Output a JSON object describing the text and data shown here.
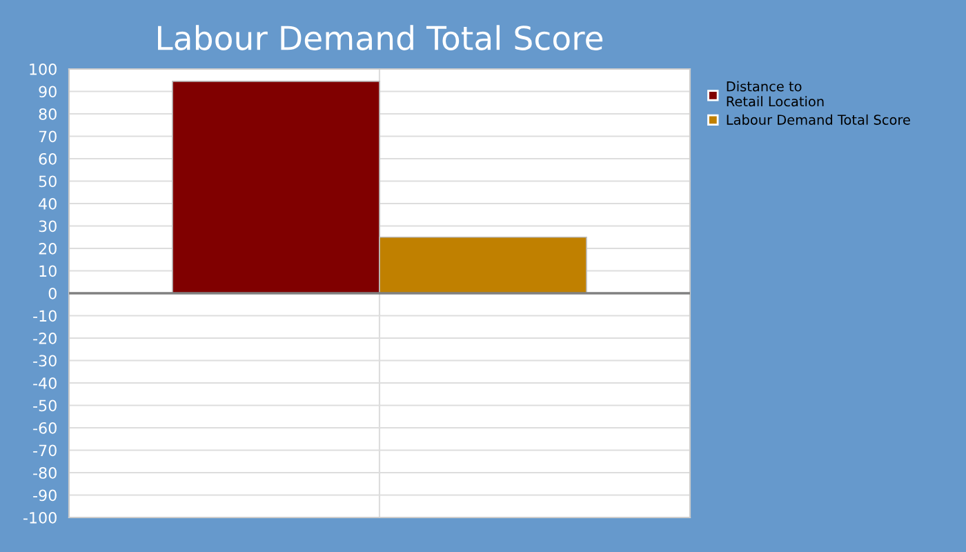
{
  "chart_data": {
    "type": "bar",
    "title": "Labour Demand Total Score",
    "categories": [
      null
    ],
    "series": [
      {
        "name": "Distance to\nRetail Location",
        "color": "#800000",
        "values": [
          94.5
        ]
      },
      {
        "name": "Labour Demand Total Score",
        "color": "#c08000",
        "values": [
          25
        ]
      }
    ],
    "ylim": [
      -100,
      100
    ],
    "yticks": [
      -100,
      -90,
      -80,
      -70,
      -60,
      -50,
      -40,
      -30,
      -20,
      -10,
      0,
      10,
      20,
      30,
      40,
      50,
      60,
      70,
      80,
      90,
      100
    ],
    "ref_lines": [
      {
        "axis": "y",
        "value": 0,
        "color": "#808080"
      }
    ],
    "grid": true,
    "legend": "top right"
  }
}
